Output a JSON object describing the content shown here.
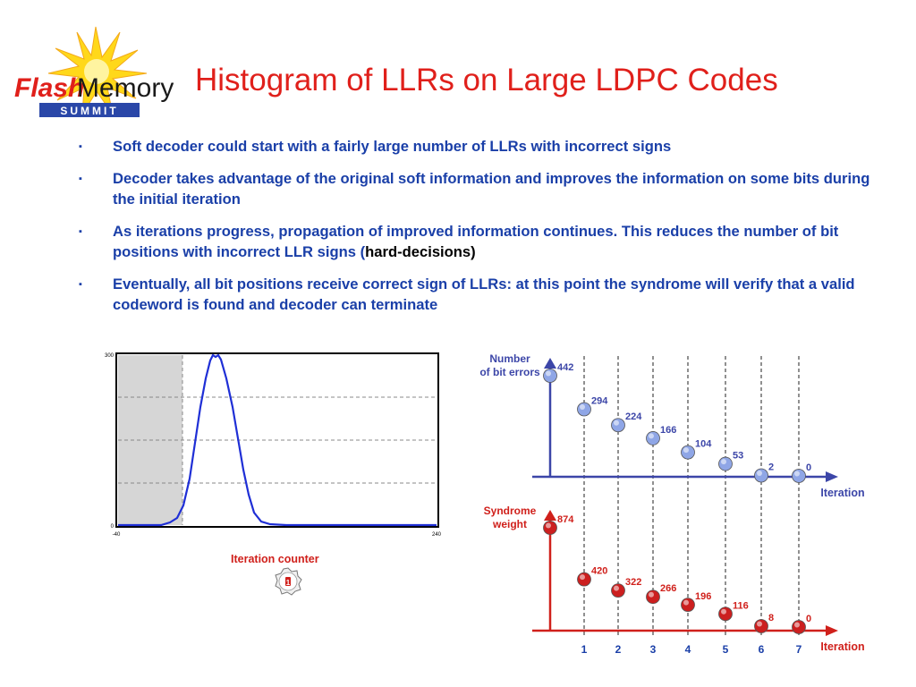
{
  "slide": {
    "logo": {
      "flash": "Flash",
      "memory": "Memory",
      "summit": "SUMMIT"
    },
    "title": "Histogram of LLRs on Large LDPC Codes",
    "bullets": [
      {
        "text": "Soft decoder could start with a fairly large number of LLRs with incorrect signs"
      },
      {
        "text": "Decoder takes advantage of the original soft information and improves the information on some bits during the initial iteration"
      },
      {
        "text": "As iterations progress, propagation of improved information continues.  This reduces the number of bit positions with incorrect LLR signs (",
        "highlight": "hard-decisions)"
      },
      {
        "text": "Eventually, all bit positions receive correct sign of LLRs: at this point the syndrome will verify that a valid codeword is found and decoder can terminate"
      }
    ],
    "bullet_marker": "▪",
    "iteration_counter_label": "Iteration counter",
    "iteration_counter_value": "1"
  },
  "histogram": {
    "y_ticks": [
      "300",
      "0"
    ],
    "x_ticks": [
      "-40",
      "240"
    ],
    "line_color": "#1f2fd6"
  },
  "chart_data": [
    {
      "type": "scatter",
      "ylabel": [
        "Number",
        "of bit errors"
      ],
      "xlabel": "Iteration",
      "x": [
        0,
        1,
        2,
        3,
        4,
        5,
        6,
        7
      ],
      "values": [
        442,
        294,
        224,
        166,
        104,
        53,
        2,
        0
      ],
      "color": "#3c46a8",
      "marker_color": "#8fa6e6"
    },
    {
      "type": "scatter",
      "ylabel": [
        "Syndrome",
        "weight"
      ],
      "xlabel": "Iteration",
      "x": [
        0,
        1,
        2,
        3,
        4,
        5,
        6,
        7
      ],
      "values": [
        874,
        420,
        322,
        266,
        196,
        116,
        8,
        0
      ],
      "color": "#d0201b",
      "marker_color": "#cc1f1f"
    }
  ],
  "x_tick_labels": [
    "1",
    "2",
    "3",
    "4",
    "5",
    "6",
    "7"
  ]
}
